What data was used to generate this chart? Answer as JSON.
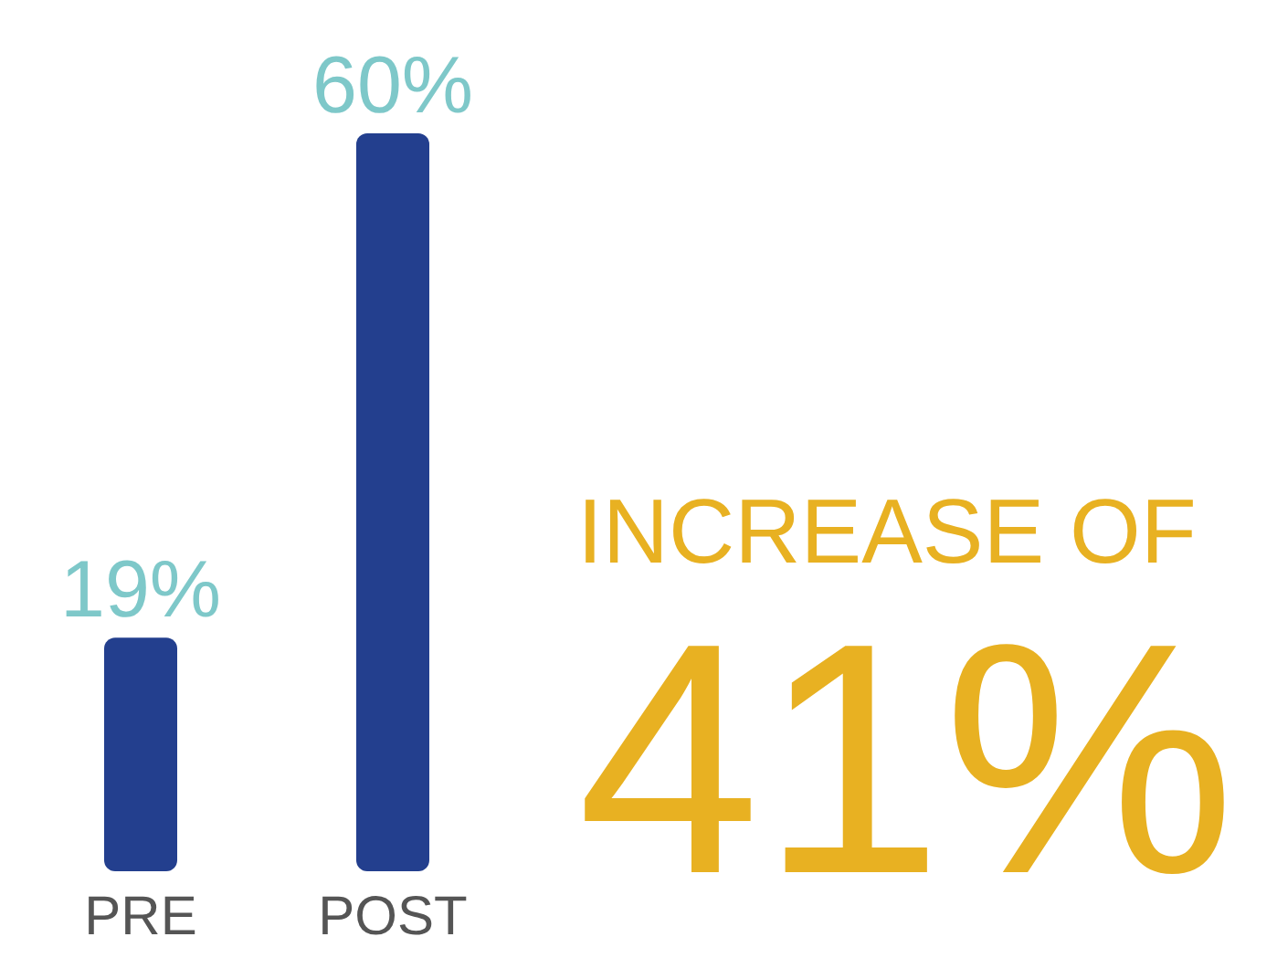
{
  "chart_data": {
    "type": "bar",
    "categories": [
      "PRE",
      "POST"
    ],
    "values": [
      19,
      60
    ],
    "value_labels": [
      "19%",
      "60%"
    ],
    "color": "#233f8e",
    "annotations": [
      "INCREASE OF",
      "41%"
    ]
  }
}
